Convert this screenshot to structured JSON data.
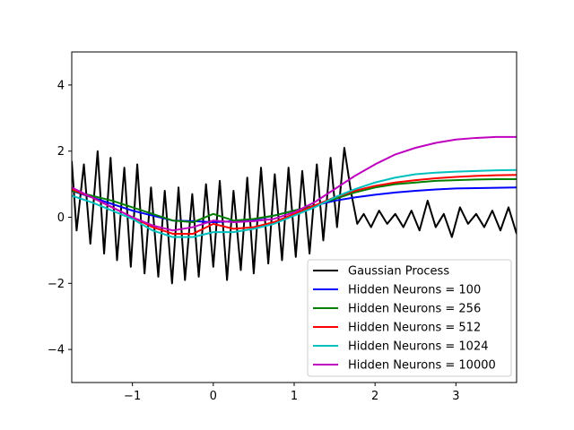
{
  "chart_data": {
    "type": "line",
    "title": "",
    "xlabel": "",
    "ylabel": "",
    "xlim": [
      -1.75,
      3.75
    ],
    "ylim": [
      -5,
      5
    ],
    "grid": false,
    "legend_position": "lower-right",
    "x_ticks": [
      -1,
      0,
      1,
      2,
      3
    ],
    "x_tick_labels": [
      "−1",
      "0",
      "1",
      "2",
      "3"
    ],
    "y_ticks": [
      -4,
      -2,
      0,
      2,
      4
    ],
    "y_tick_labels": [
      "−4",
      "−2",
      "0",
      "2",
      "4"
    ],
    "series": [
      {
        "name": "Gaussian Process",
        "color": "#000000",
        "style": "oscillating",
        "x": [
          -1.75,
          -1.69,
          -1.6,
          -1.52,
          -1.43,
          -1.35,
          -1.27,
          -1.19,
          -1.1,
          -1.02,
          -0.94,
          -0.85,
          -0.77,
          -0.68,
          -0.6,
          -0.51,
          -0.43,
          -0.35,
          -0.26,
          -0.18,
          -0.09,
          0.0,
          0.08,
          0.17,
          0.25,
          0.34,
          0.42,
          0.5,
          0.59,
          0.68,
          0.76,
          0.85,
          0.93,
          1.02,
          1.1,
          1.19,
          1.28,
          1.36,
          1.45,
          1.53,
          1.62,
          1.7,
          1.78,
          1.86,
          1.95,
          2.05,
          2.15,
          2.25,
          2.35,
          2.45,
          2.55,
          2.65,
          2.75,
          2.85,
          2.95,
          3.05,
          3.15,
          3.25,
          3.35,
          3.45,
          3.55,
          3.65,
          3.75
        ],
        "y": [
          1.7,
          -0.4,
          1.6,
          -0.8,
          2.0,
          -1.1,
          1.8,
          -1.3,
          1.5,
          -1.5,
          1.6,
          -1.7,
          0.9,
          -1.8,
          0.8,
          -2.0,
          0.9,
          -1.9,
          0.7,
          -1.8,
          1.0,
          -1.5,
          1.1,
          -1.9,
          0.8,
          -1.6,
          1.2,
          -1.7,
          1.5,
          -1.4,
          1.3,
          -1.3,
          1.5,
          -1.2,
          1.4,
          -1.1,
          1.6,
          -0.7,
          1.8,
          -0.3,
          2.1,
          0.8,
          -0.2,
          0.1,
          -0.3,
          0.2,
          -0.2,
          0.1,
          -0.3,
          0.2,
          -0.4,
          0.5,
          -0.3,
          0.1,
          -0.6,
          0.3,
          -0.2,
          0.1,
          -0.3,
          0.2,
          -0.4,
          0.3,
          -0.5
        ]
      },
      {
        "name": "Hidden Neurons = 100",
        "color": "#0000ff",
        "x": [
          -1.75,
          -1.5,
          -1.25,
          -1.0,
          -0.75,
          -0.5,
          -0.25,
          0.0,
          0.25,
          0.5,
          0.75,
          1.0,
          1.25,
          1.5,
          1.75,
          2.0,
          2.25,
          2.5,
          2.75,
          3.0,
          3.25,
          3.5,
          3.75
        ],
        "y": [
          0.8,
          0.6,
          0.4,
          0.2,
          0.05,
          -0.1,
          -0.12,
          -0.15,
          -0.12,
          -0.08,
          0.05,
          0.2,
          0.35,
          0.5,
          0.6,
          0.68,
          0.75,
          0.8,
          0.84,
          0.87,
          0.88,
          0.89,
          0.9
        ]
      },
      {
        "name": "Hidden Neurons = 256",
        "color": "#008000",
        "x": [
          -1.75,
          -1.5,
          -1.25,
          -1.0,
          -0.75,
          -0.5,
          -0.25,
          0.0,
          0.25,
          0.5,
          0.75,
          1.0,
          1.25,
          1.5,
          1.75,
          2.0,
          2.25,
          2.5,
          2.75,
          3.0,
          3.25,
          3.5,
          3.75
        ],
        "y": [
          0.8,
          0.65,
          0.5,
          0.3,
          0.1,
          -0.1,
          -0.15,
          0.1,
          -0.1,
          -0.05,
          0.05,
          0.2,
          0.35,
          0.55,
          0.75,
          0.9,
          1.0,
          1.05,
          1.1,
          1.12,
          1.14,
          1.15,
          1.15
        ]
      },
      {
        "name": "Hidden Neurons = 512",
        "color": "#ff0000",
        "x": [
          -1.75,
          -1.5,
          -1.25,
          -1.0,
          -0.75,
          -0.5,
          -0.25,
          0.0,
          0.25,
          0.5,
          0.75,
          1.0,
          1.25,
          1.5,
          1.75,
          2.0,
          2.25,
          2.5,
          2.75,
          3.0,
          3.25,
          3.5,
          3.75
        ],
        "y": [
          0.85,
          0.6,
          0.3,
          0.0,
          -0.3,
          -0.5,
          -0.5,
          -0.2,
          -0.35,
          -0.3,
          -0.15,
          0.1,
          0.35,
          0.6,
          0.8,
          0.95,
          1.05,
          1.12,
          1.18,
          1.22,
          1.25,
          1.27,
          1.28
        ]
      },
      {
        "name": "Hidden Neurons = 1024",
        "color": "#00bfbf",
        "x": [
          -1.75,
          -1.5,
          -1.25,
          -1.0,
          -0.75,
          -0.5,
          -0.25,
          0.0,
          0.25,
          0.5,
          0.75,
          1.0,
          1.25,
          1.5,
          1.75,
          2.0,
          2.25,
          2.5,
          2.75,
          3.0,
          3.25,
          3.5,
          3.75
        ],
        "y": [
          0.65,
          0.45,
          0.2,
          -0.05,
          -0.4,
          -0.6,
          -0.6,
          -0.45,
          -0.45,
          -0.35,
          -0.2,
          0.05,
          0.3,
          0.6,
          0.85,
          1.05,
          1.2,
          1.3,
          1.35,
          1.38,
          1.4,
          1.42,
          1.43
        ]
      },
      {
        "name": "Hidden Neurons = 10000",
        "color": "#bf00bf",
        "x": [
          -1.75,
          -1.5,
          -1.25,
          -1.0,
          -0.75,
          -0.5,
          -0.25,
          0.0,
          0.25,
          0.5,
          0.75,
          1.0,
          1.25,
          1.5,
          1.75,
          2.0,
          2.25,
          2.5,
          2.75,
          3.0,
          3.25,
          3.5,
          3.75
        ],
        "y": [
          0.9,
          0.6,
          0.3,
          0.0,
          -0.25,
          -0.4,
          -0.3,
          -0.1,
          -0.15,
          -0.12,
          -0.05,
          0.15,
          0.45,
          0.85,
          1.25,
          1.6,
          1.9,
          2.1,
          2.25,
          2.35,
          2.4,
          2.43,
          2.43
        ]
      }
    ]
  }
}
